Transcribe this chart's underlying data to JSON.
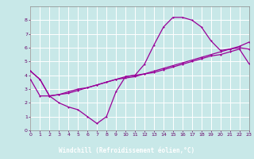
{
  "xlabel": "Windchill (Refroidissement éolien,°C)",
  "background_color": "#c8e8e8",
  "grid_color": "#b0d8d8",
  "line_color": "#990099",
  "label_bg_color": "#800080",
  "label_text_color": "#ffffff",
  "xlim": [
    0,
    23
  ],
  "ylim": [
    0,
    9
  ],
  "xticks": [
    0,
    1,
    2,
    3,
    4,
    5,
    6,
    7,
    8,
    9,
    10,
    11,
    12,
    13,
    14,
    15,
    16,
    17,
    18,
    19,
    20,
    21,
    22,
    23
  ],
  "yticks": [
    0,
    1,
    2,
    3,
    4,
    5,
    6,
    7,
    8
  ],
  "curve1_x": [
    0,
    1,
    2,
    3,
    4,
    5,
    6,
    7,
    8,
    9,
    10,
    11,
    12,
    13,
    14,
    15,
    16,
    17,
    18,
    19,
    20,
    21,
    22,
    23
  ],
  "curve1_y": [
    4.3,
    3.7,
    2.5,
    2.0,
    1.7,
    1.5,
    1.0,
    0.5,
    1.0,
    2.8,
    3.9,
    4.0,
    4.8,
    6.2,
    7.5,
    8.2,
    8.2,
    8.0,
    7.5,
    6.5,
    5.8,
    5.9,
    6.0,
    5.9
  ],
  "curve2_x": [
    0,
    1,
    2,
    3,
    4,
    5,
    6,
    7,
    8,
    9,
    10,
    11,
    12,
    13,
    14,
    15,
    16,
    17,
    18,
    19,
    20,
    21,
    22,
    23
  ],
  "curve2_y": [
    4.3,
    3.7,
    2.5,
    2.6,
    2.7,
    2.9,
    3.1,
    3.3,
    3.5,
    3.7,
    3.9,
    4.0,
    4.1,
    4.3,
    4.5,
    4.7,
    4.9,
    5.1,
    5.3,
    5.5,
    5.7,
    5.9,
    6.1,
    6.4
  ],
  "curve3_x": [
    0,
    1,
    2,
    3,
    4,
    5,
    6,
    7,
    8,
    9,
    10,
    11,
    12,
    13,
    14,
    15,
    16,
    17,
    18,
    19,
    20,
    21,
    22,
    23
  ],
  "curve3_y": [
    3.7,
    2.5,
    2.5,
    2.6,
    2.8,
    3.0,
    3.1,
    3.3,
    3.5,
    3.7,
    3.8,
    3.9,
    4.1,
    4.2,
    4.4,
    4.6,
    4.8,
    5.0,
    5.2,
    5.4,
    5.5,
    5.7,
    5.9,
    4.85
  ]
}
